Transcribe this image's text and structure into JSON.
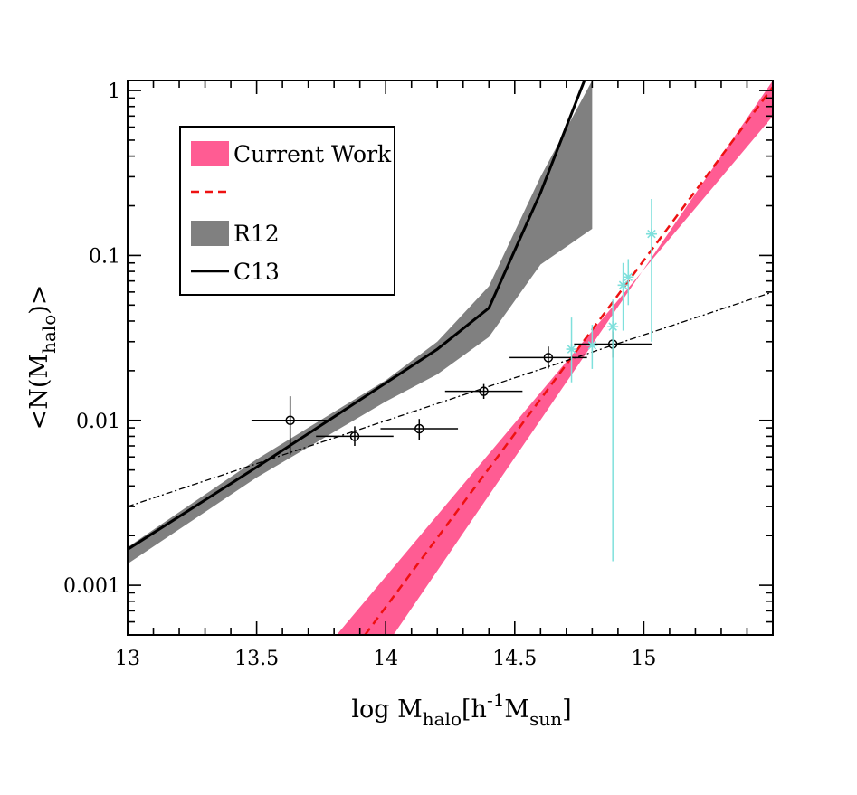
{
  "chart_data": {
    "type": "line",
    "xlabel": "log M",
    "xlabel_sub": "halo",
    "xlabel_rest_a": "[h",
    "xlabel_sup": "-1",
    "xlabel_rest_b": "M",
    "xlabel_sub2": "sun",
    "xlabel_close": "]",
    "ylabel": "<N(M",
    "ylabel_sub": "halo",
    "ylabel_close": ")>",
    "x_range": [
      13,
      15.5
    ],
    "y_range": [
      0.0005,
      1.15
    ],
    "y_scale": "log",
    "x_ticks": [
      13,
      13.5,
      14,
      14.5,
      15
    ],
    "x_tick_labels": [
      "13",
      "13.5",
      "14",
      "14.5",
      "15"
    ],
    "y_ticks": [
      0.001,
      0.01,
      0.1,
      1
    ],
    "y_tick_labels": [
      "0.001",
      "0.01",
      "0.1",
      "1"
    ],
    "legend_position": "top-left",
    "legend": [
      {
        "label": "Current Work",
        "kind": "band",
        "color": "#ff5c93"
      },
      {
        "label": "",
        "kind": "dashed-line",
        "color": "#ee1111"
      },
      {
        "label": "R12",
        "kind": "band",
        "color": "#808080"
      },
      {
        "label": "C13",
        "kind": "line",
        "color": "#000000"
      }
    ],
    "series": [
      {
        "name": "Current Work",
        "kind": "band",
        "color": "#ff5c93",
        "x": [
          13.81,
          15.5
        ],
        "y_low": [
          0.0005,
          0.7
        ],
        "x_high": [
          14.03,
          15.5
        ],
        "y_high": [
          0.0005,
          1.15
        ]
      },
      {
        "kind": "dashed-line",
        "color": "#ee1111",
        "x": [
          13.92,
          15.5
        ],
        "y": [
          0.0005,
          1.05
        ]
      },
      {
        "name": "R12",
        "kind": "band",
        "color": "#808080",
        "x": [
          13.0,
          13.5,
          14.0,
          14.2,
          14.4,
          14.6,
          14.8
        ],
        "y_upper": [
          0.0017,
          0.0058,
          0.0175,
          0.03,
          0.065,
          0.3,
          1.15
        ],
        "y_lower": [
          0.00135,
          0.0045,
          0.013,
          0.019,
          0.032,
          0.088,
          0.145
        ]
      },
      {
        "name": "C13",
        "kind": "line",
        "color": "#000000",
        "x": [
          13.0,
          13.5,
          13.8,
          14.2,
          14.4,
          14.6,
          14.77
        ],
        "y": [
          0.00165,
          0.0052,
          0.0105,
          0.027,
          0.048,
          0.24,
          1.15
        ]
      },
      {
        "kind": "dash-dot-line",
        "color": "#000000",
        "x": [
          13.0,
          15.5
        ],
        "y": [
          0.003,
          0.06
        ]
      },
      {
        "kind": "points-open-circle",
        "color": "#000000",
        "points": [
          {
            "x": 13.63,
            "y": 0.01,
            "xerr": 0.15,
            "ylo": 0.0062,
            "yhi": 0.014
          },
          {
            "x": 13.88,
            "y": 0.008,
            "xerr": 0.15,
            "ylo": 0.007,
            "yhi": 0.0092
          },
          {
            "x": 14.13,
            "y": 0.0089,
            "xerr": 0.15,
            "ylo": 0.0076,
            "yhi": 0.0102
          },
          {
            "x": 14.38,
            "y": 0.015,
            "xerr": 0.15,
            "ylo": 0.0135,
            "yhi": 0.0166
          },
          {
            "x": 14.63,
            "y": 0.024,
            "xerr": 0.15,
            "ylo": 0.0206,
            "yhi": 0.028
          },
          {
            "x": 14.88,
            "y": 0.029,
            "xerr": 0.15,
            "ylo": 0.024,
            "yhi": 0.035
          }
        ]
      },
      {
        "kind": "points-asterisk",
        "color": "#7fe0dc",
        "points": [
          {
            "x": 14.72,
            "y": 0.027,
            "ylo": 0.017,
            "yhi": 0.042
          },
          {
            "x": 14.8,
            "y": 0.0285,
            "ylo": 0.0205,
            "yhi": 0.038
          },
          {
            "x": 14.88,
            "y": 0.037,
            "ylo": 0.0014,
            "yhi": 0.054
          },
          {
            "x": 14.92,
            "y": 0.066,
            "ylo": 0.035,
            "yhi": 0.09
          },
          {
            "x": 14.94,
            "y": 0.074,
            "ylo": 0.05,
            "yhi": 0.095
          },
          {
            "x": 15.03,
            "y": 0.135,
            "ylo": 0.03,
            "yhi": 0.22
          }
        ]
      }
    ]
  }
}
